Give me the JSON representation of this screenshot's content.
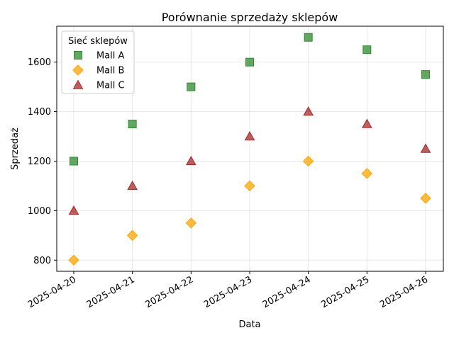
{
  "chart_data": {
    "type": "scatter",
    "title": "Porównanie sprzedaży sklepów",
    "xlabel": "Data",
    "ylabel": "Sprzedaż",
    "x": [
      "2025-04-20",
      "2025-04-21",
      "2025-04-22",
      "2025-04-23",
      "2025-04-24",
      "2025-04-25",
      "2025-04-26"
    ],
    "ylim": [
      755,
      1745
    ],
    "yticks": [
      800,
      1000,
      1200,
      1400,
      1600
    ],
    "grid": true,
    "legend": {
      "title": "Sieć sklepów",
      "placement": "top-left"
    },
    "series": [
      {
        "name": "Mall A",
        "marker": "square",
        "color": "#2e8b2e",
        "values": [
          1200,
          1350,
          1500,
          1600,
          1700,
          1650,
          1550
        ]
      },
      {
        "name": "Mall B",
        "marker": "diamond",
        "color": "#ffa500",
        "values": [
          800,
          900,
          950,
          1100,
          1200,
          1150,
          1050
        ]
      },
      {
        "name": "Mall C",
        "marker": "triangle",
        "color": "#a52a2a",
        "values": [
          1000,
          1100,
          1200,
          1300,
          1400,
          1350,
          1250
        ]
      }
    ]
  }
}
